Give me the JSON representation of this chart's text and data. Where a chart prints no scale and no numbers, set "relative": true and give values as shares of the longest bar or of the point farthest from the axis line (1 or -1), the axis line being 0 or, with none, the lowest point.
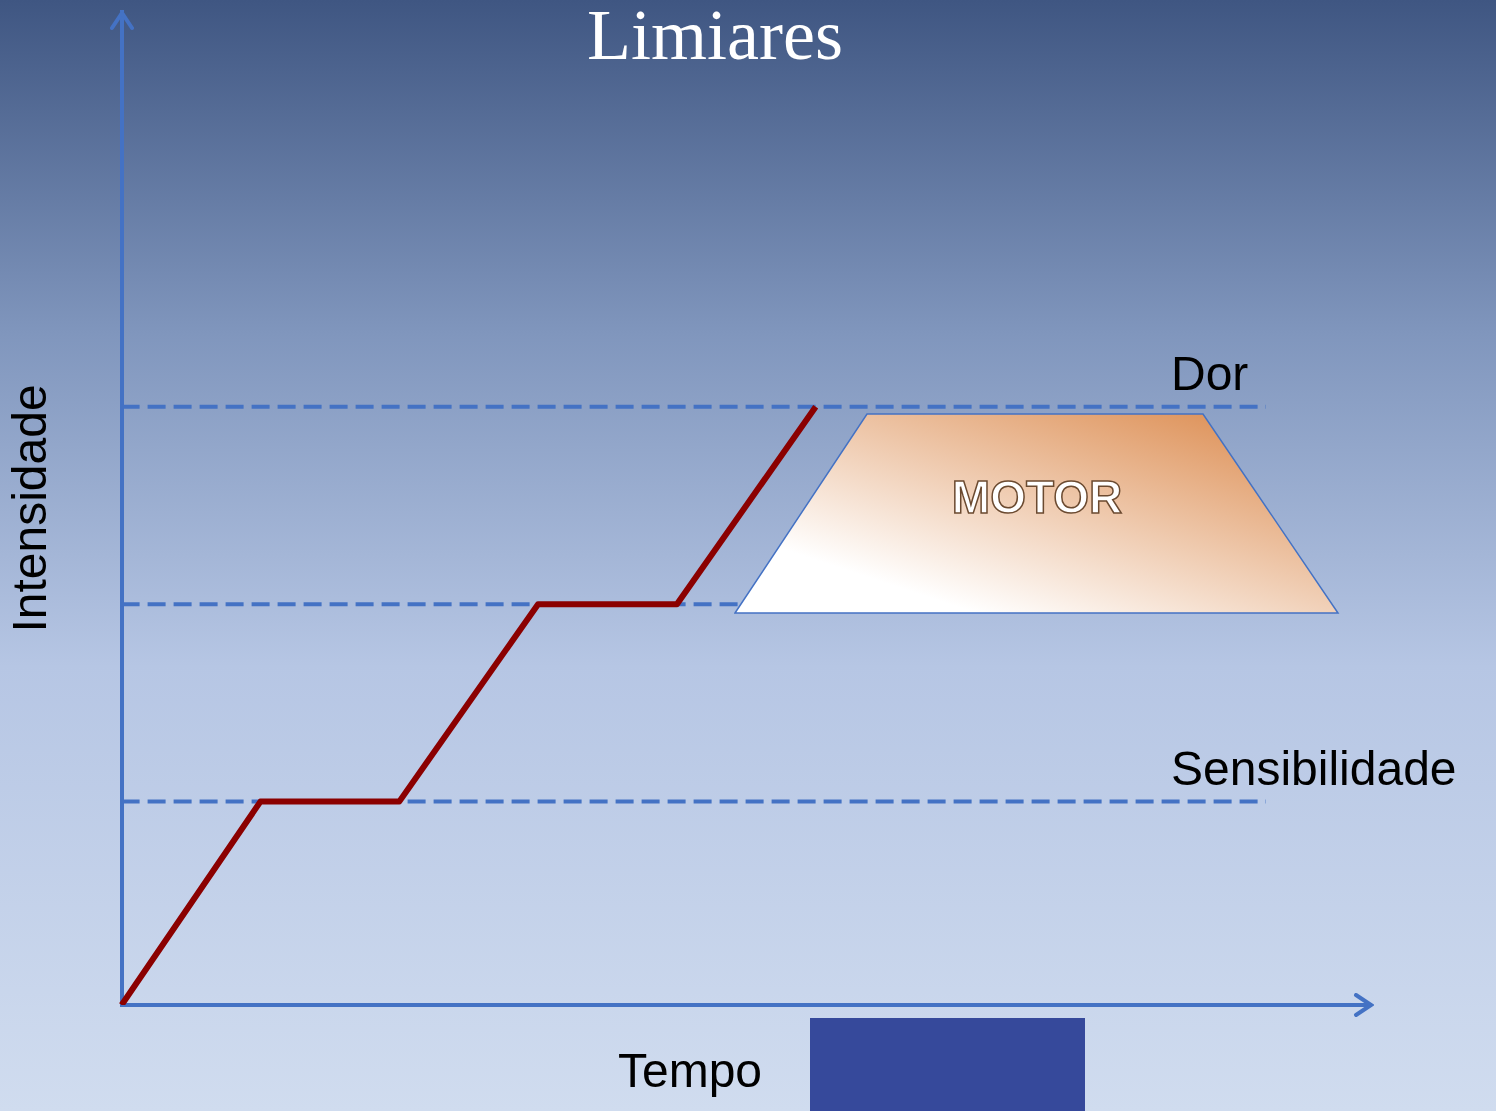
{
  "chart_data": {
    "type": "line",
    "title": "Limiares",
    "xlabel": "Tempo",
    "ylabel": "Intensidade",
    "relative": true,
    "tick_labels": false,
    "grid": false,
    "legend": false,
    "marker": "none",
    "line_style": "solid",
    "categories": [
      null,
      null,
      null,
      null,
      null,
      null,
      null,
      null,
      null,
      null
    ],
    "series": [
      {
        "color": "#8b0000",
        "values": [
          0,
          0.34,
          0.34,
          0.67,
          0.67,
          1,
          null,
          null,
          null,
          null
        ]
      }
    ],
    "ref_lines": [
      {
        "axis": "y",
        "value": 1,
        "label": "Dor",
        "color": "#4472c4",
        "line_style": "dashed"
      },
      {
        "axis": "y",
        "value": 0.67,
        "label": null,
        "color": "#4472c4",
        "line_style": "dashed"
      },
      {
        "axis": "y",
        "value": 0.34,
        "label": "Sensibilidade",
        "color": "#4472c4",
        "line_style": "dashed"
      }
    ],
    "annotations": [
      "MOTOR"
    ]
  }
}
